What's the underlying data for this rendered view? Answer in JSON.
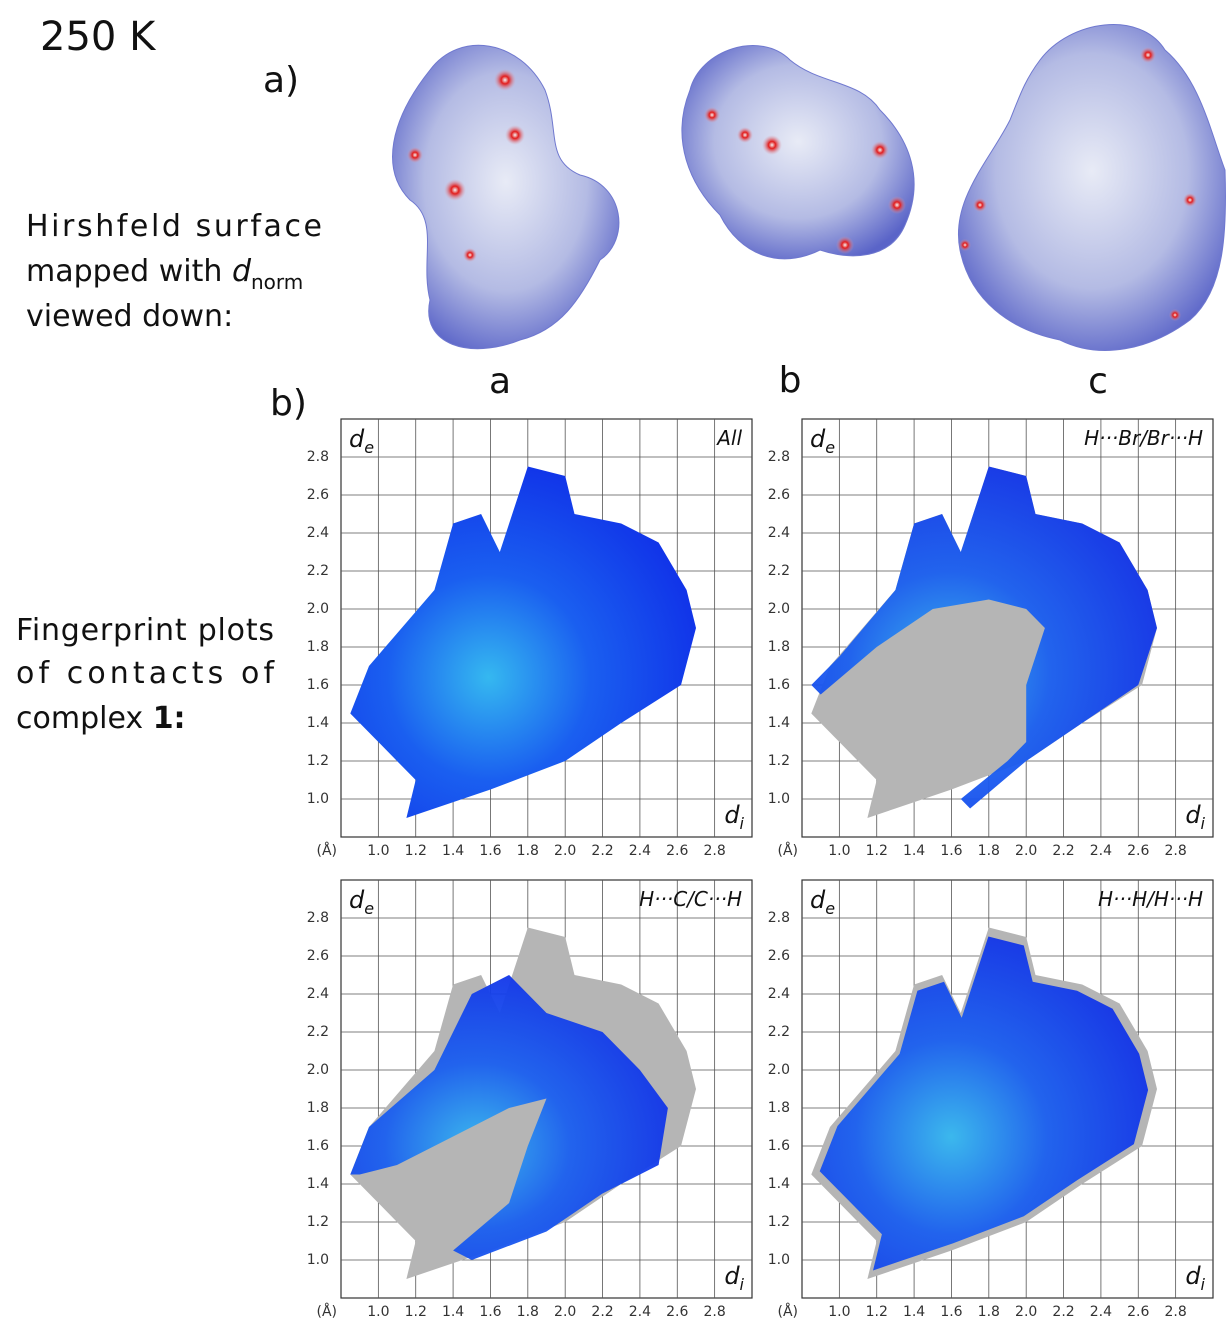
{
  "header": {
    "temperature": "250 K"
  },
  "part_a": {
    "label": "a)",
    "caption": [
      "Hirshfeld surface",
      "mapped with",
      "d",
      "norm",
      "viewed down:"
    ],
    "views": [
      "a",
      "b",
      "c"
    ]
  },
  "part_b": {
    "label": "b)",
    "caption": [
      "Fingerprint plots",
      "of contacts of",
      "complex",
      "1:"
    ],
    "panels": [
      {
        "title": "All"
      },
      {
        "title": "H···Br/Br···H"
      },
      {
        "title": "H···C/C···H"
      },
      {
        "title": "H···H/H···H"
      }
    ]
  },
  "axes": {
    "y_label": "d",
    "y_sub": "e",
    "x_label": "d",
    "x_sub": "i",
    "unit": "(Å)",
    "xlim": [
      0.8,
      3.0
    ],
    "ylim": [
      0.8,
      3.0
    ],
    "xticks": [
      {
        "value": 1,
        "label": "1.0"
      },
      1.2,
      1.4,
      1.6,
      1.8,
      {
        "value": 2,
        "label": "2.0"
      },
      2.2,
      2.4,
      2.6,
      2.8
    ],
    "yticks": [
      {
        "value": 1,
        "label": "1.0"
      },
      1.2,
      1.4,
      1.6,
      1.8,
      {
        "value": 2,
        "label": "2.0"
      },
      2.2,
      2.4,
      2.6,
      2.8
    ]
  }
}
